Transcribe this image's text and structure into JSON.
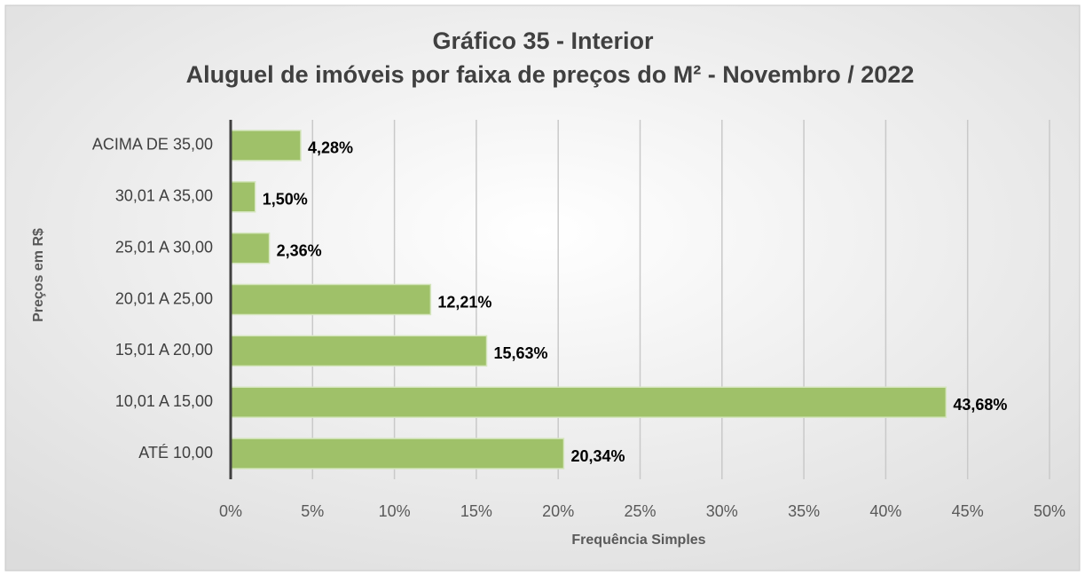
{
  "chart_data": {
    "type": "bar",
    "orientation": "horizontal",
    "title": "Gráfico 35 - Interior",
    "subtitle": "Aluguel de imóveis por faixa de preços do M² - Novembro / 2022",
    "x_label": "Frequência Simples",
    "y_label": "Preços em R$",
    "categories": [
      "ACIMA DE 35,00",
      "30,01 A 35,00",
      "25,01 A 30,00",
      "20,01 A 25,00",
      "15,01 A 20,00",
      "10,01 A 15,00",
      "ATÉ 10,00"
    ],
    "values": [
      4.28,
      1.5,
      2.36,
      12.21,
      15.63,
      43.68,
      20.34
    ],
    "value_labels": [
      "4,28%",
      "1,50%",
      "2,36%",
      "12,21%",
      "15,63%",
      "43,68%",
      "20,34%"
    ],
    "color": "#9fc169",
    "xlim": [
      0,
      50
    ],
    "xticks": [
      {
        "value": 0,
        "label": "0%"
      },
      {
        "value": 5,
        "label": "5%"
      },
      {
        "value": 10,
        "label": "10%"
      },
      {
        "value": 15,
        "label": "15%"
      },
      {
        "value": 20,
        "label": "20%"
      },
      {
        "value": 25,
        "label": "25%"
      },
      {
        "value": 30,
        "label": "30%"
      },
      {
        "value": 35,
        "label": "35%"
      },
      {
        "value": 40,
        "label": "40%"
      },
      {
        "value": 45,
        "label": "45%"
      },
      {
        "value": 50,
        "label": "50%"
      }
    ],
    "grid": true
  }
}
